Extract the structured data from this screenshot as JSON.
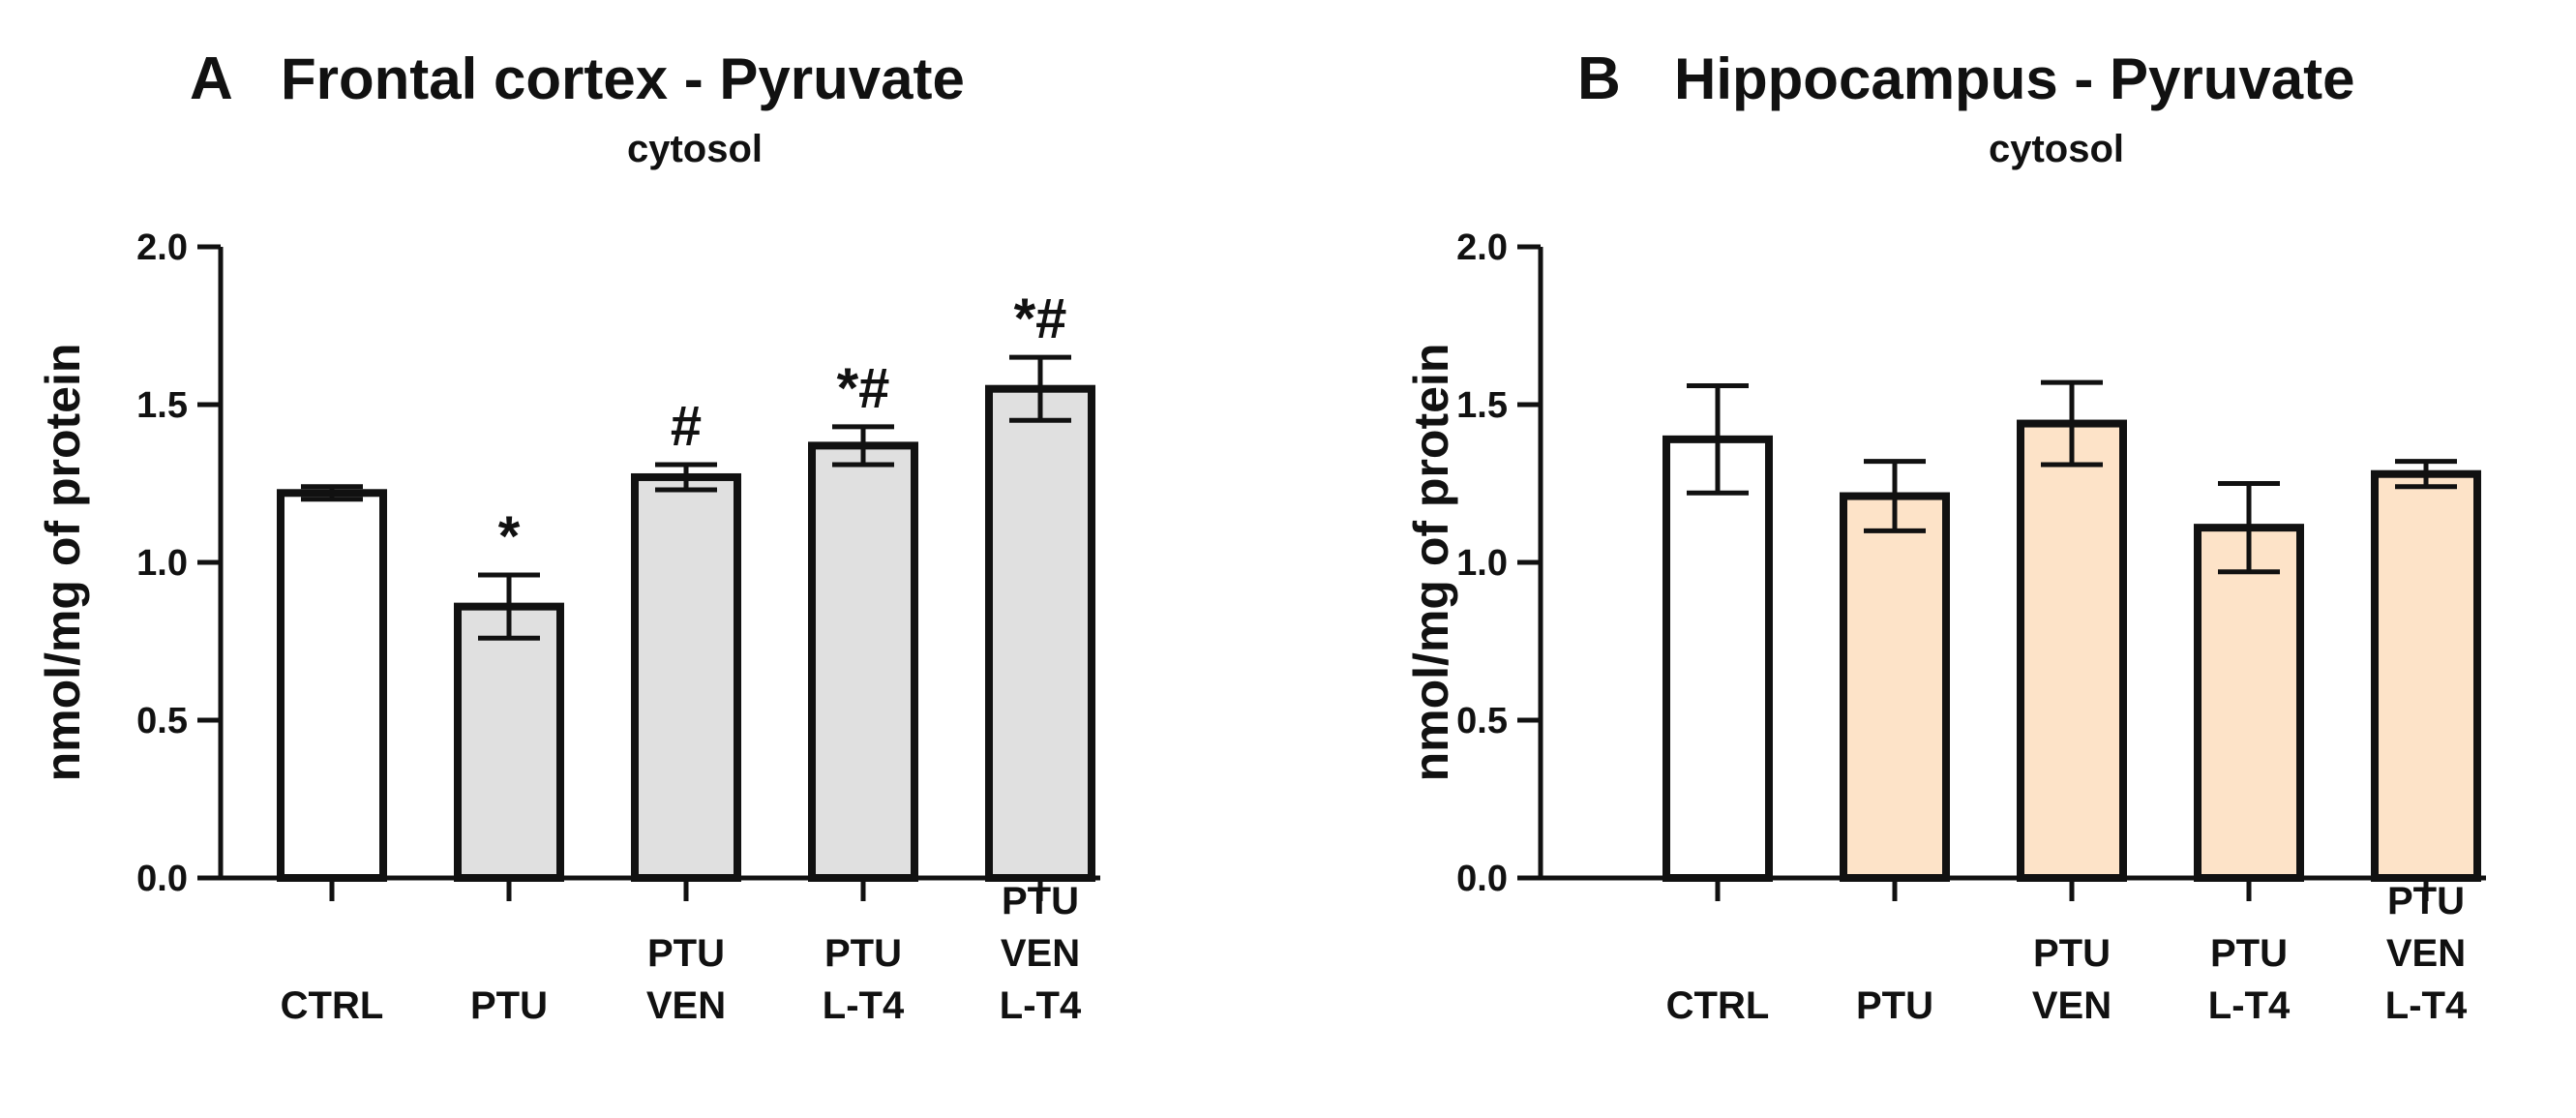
{
  "chart_data": [
    {
      "panel": "A",
      "type": "bar",
      "title": "Frontal cortex - Pyruvate",
      "subtitle": "cytosol",
      "ylabel": "nmol/mg of protein",
      "ylim": [
        0,
        2.0
      ],
      "yticks": [
        "0.0",
        "0.5",
        "1.0",
        "1.5",
        "2.0"
      ],
      "categories": [
        [
          "CTRL"
        ],
        [
          "PTU"
        ],
        [
          "PTU",
          "VEN"
        ],
        [
          "PTU",
          "L-T4"
        ],
        [
          "PTU",
          "VEN",
          "L-T4"
        ]
      ],
      "values": [
        1.22,
        0.86,
        1.27,
        1.37,
        1.55
      ],
      "errors": [
        0.02,
        0.1,
        0.04,
        0.06,
        0.1
      ],
      "significance": [
        "",
        "*",
        "#",
        "*#",
        "*#"
      ],
      "colors": [
        "#ffffff",
        "#e0e0e0",
        "#e0e0e0",
        "#e0e0e0",
        "#e0e0e0"
      ]
    },
    {
      "panel": "B",
      "type": "bar",
      "title": "Hippocampus - Pyruvate",
      "subtitle": "cytosol",
      "ylabel": "nmol/mg of protein",
      "ylim": [
        0,
        2.0
      ],
      "yticks": [
        "0.0",
        "0.5",
        "1.0",
        "1.5",
        "2.0"
      ],
      "categories": [
        [
          "CTRL"
        ],
        [
          "PTU"
        ],
        [
          "PTU",
          "VEN"
        ],
        [
          "PTU",
          "L-T4"
        ],
        [
          "PTU",
          "VEN",
          "L-T4"
        ]
      ],
      "values": [
        1.39,
        1.21,
        1.44,
        1.11,
        1.28
      ],
      "errors": [
        0.17,
        0.11,
        0.13,
        0.14,
        0.04
      ],
      "significance": [
        "",
        "",
        "",
        "",
        ""
      ],
      "colors": [
        "#ffffff",
        "#fde3c8",
        "#fde3c8",
        "#fde3c8",
        "#fde3c8"
      ]
    }
  ]
}
